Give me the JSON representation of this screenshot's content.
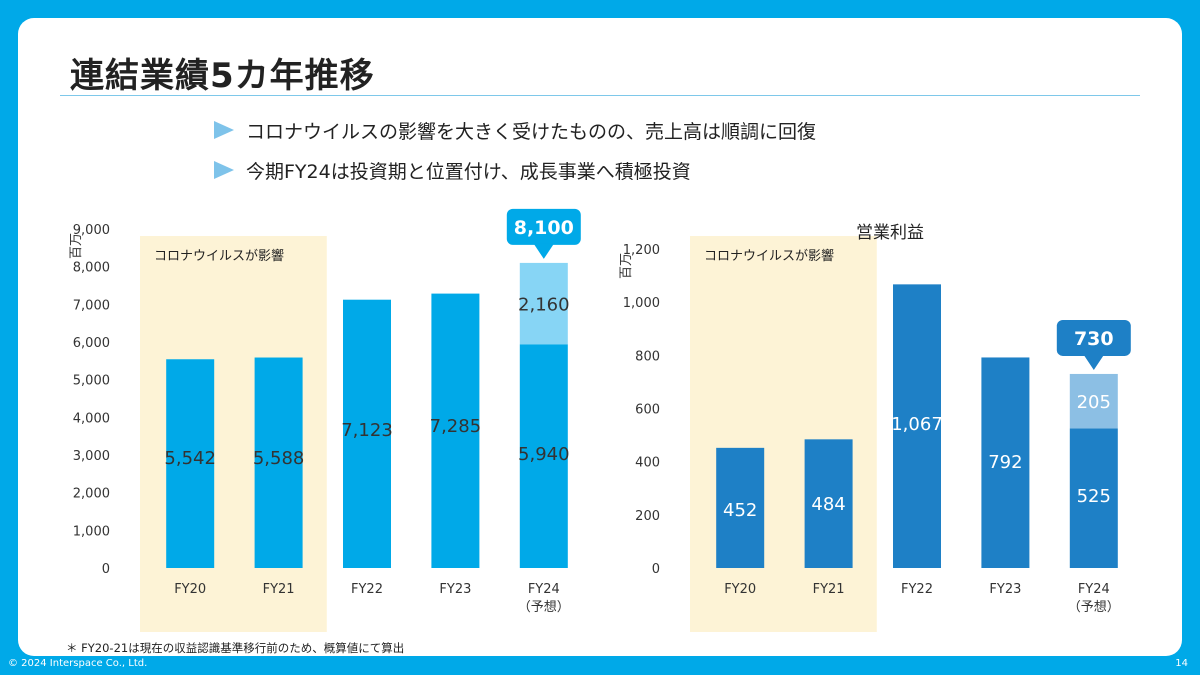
{
  "slide": {
    "title": "連結業績5カ年推移",
    "bullets": [
      "コロナウイルスの影響を大きく受けたものの、売上高は順調に回復",
      "今期FY24は投資期と位置付け、成長事業へ積極投資"
    ],
    "footnote": "＊ FY20-21は現在の収益認識基準移行前のため、概算値にて算出",
    "copyright": "© 2024 Interspace Co., Ltd.",
    "page_number": "14"
  },
  "colors": {
    "frame": "#00a9e8",
    "sales_bar": "#00a9e8",
    "sales_bar_light": "#87d5f5",
    "profit_bar": "#1e80c6",
    "profit_bar_light": "#8cbfe4",
    "covid_band": "#fdf3d6",
    "callout_sales": "#00a9e8",
    "callout_profit": "#1e80c6"
  },
  "chart_data": [
    {
      "type": "bar",
      "title": "",
      "ylabel": "百万",
      "categories": [
        "FY20",
        "FY21",
        "FY22",
        "FY23",
        "FY24"
      ],
      "category_sublabels": [
        "",
        "",
        "",
        "",
        "（予想）"
      ],
      "ylim": [
        0,
        9000
      ],
      "yticks": [
        0,
        1000,
        2000,
        3000,
        4000,
        5000,
        6000,
        7000,
        8000,
        9000
      ],
      "ytick_labels": [
        "0",
        "1,000",
        "2,000",
        "3,000",
        "4,000",
        "5,000",
        "6,000",
        "7,000",
        "8,000",
        "9,000"
      ],
      "series": [
        {
          "name": "base",
          "values": [
            5542,
            5588,
            7123,
            7285,
            5940
          ],
          "labels": [
            "5,542",
            "5,588",
            "7,123",
            "7,285",
            "5,940"
          ]
        },
        {
          "name": "increment",
          "values": [
            0,
            0,
            0,
            0,
            2160
          ],
          "labels": [
            "",
            "",
            "",
            "",
            "2,160"
          ]
        }
      ],
      "total_callout": {
        "category": "FY24",
        "value": 8100,
        "label": "8,100"
      },
      "shaded_region": {
        "categories": [
          "FY20",
          "FY21"
        ],
        "label": "コロナウイルスが影響"
      }
    },
    {
      "type": "bar",
      "title": "営業利益",
      "ylabel": "百万",
      "categories": [
        "FY20",
        "FY21",
        "FY22",
        "FY23",
        "FY24"
      ],
      "category_sublabels": [
        "",
        "",
        "",
        "",
        "（予想）"
      ],
      "ylim": [
        0,
        1200
      ],
      "yticks": [
        0,
        200,
        400,
        600,
        800,
        1000,
        1200
      ],
      "ytick_labels": [
        "0",
        "200",
        "400",
        "600",
        "800",
        "1,000",
        "1,200"
      ],
      "series": [
        {
          "name": "base",
          "values": [
            452,
            484,
            1067,
            792,
            525
          ],
          "labels": [
            "452",
            "484",
            "1,067",
            "792",
            "525"
          ]
        },
        {
          "name": "increment",
          "values": [
            0,
            0,
            0,
            0,
            205
          ],
          "labels": [
            "",
            "",
            "",
            "",
            "205"
          ]
        }
      ],
      "total_callout": {
        "category": "FY24",
        "value": 730,
        "label": "730"
      },
      "shaded_region": {
        "categories": [
          "FY20",
          "FY21"
        ],
        "label": "コロナウイルスが影響"
      }
    }
  ]
}
